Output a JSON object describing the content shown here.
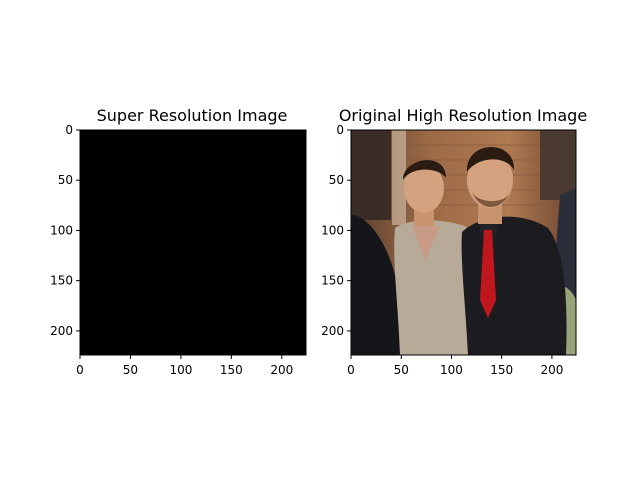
{
  "figure": {
    "background": "#ffffff"
  },
  "chart_data": [
    {
      "type": "image",
      "title": "Super Resolution Image",
      "xlim": [
        0,
        224
      ],
      "ylim": [
        224,
        0
      ],
      "xticks": [
        0,
        50,
        100,
        150,
        200
      ],
      "yticks": [
        0,
        50,
        100,
        150,
        200
      ],
      "content": "solid-black",
      "fill_color": "#000000"
    },
    {
      "type": "image",
      "title": "Original High Resolution Image",
      "xlim": [
        0,
        224
      ],
      "ylim": [
        224,
        0
      ],
      "xticks": [
        0,
        50,
        100,
        150,
        200
      ],
      "yticks": [
        0,
        50,
        100,
        150,
        200
      ],
      "content": "photo-two-men-posing-indoors",
      "palette": {
        "wall": "#8a5a3c",
        "wall_light": "#c99b72",
        "skin": "#d4a27e",
        "hair": "#2b1c12",
        "shirt": "#b8aa98",
        "suit": "#1c1b1f",
        "tie": "#c0161e",
        "dark": "#141416",
        "green": "#9aa27a"
      }
    }
  ]
}
